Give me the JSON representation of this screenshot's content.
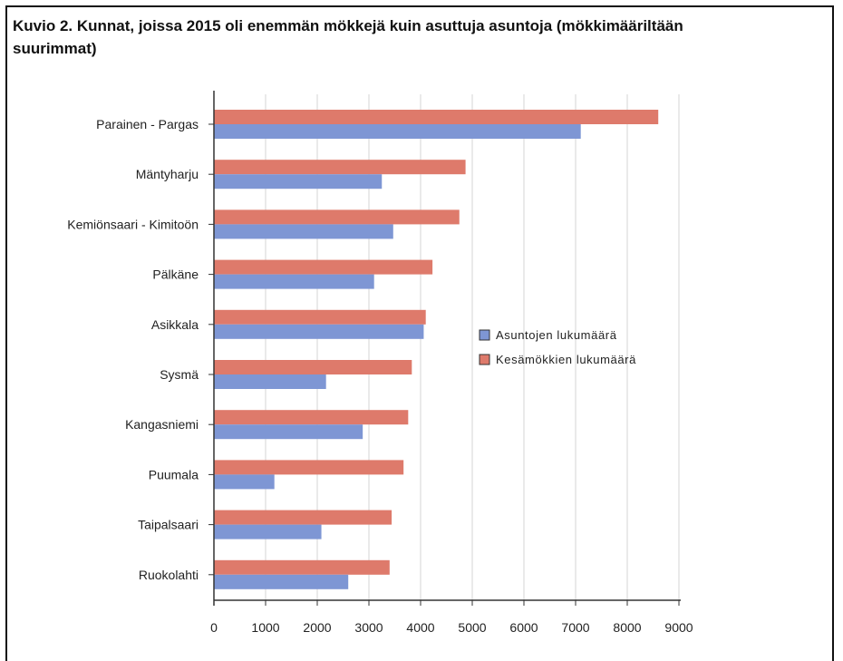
{
  "title": "Kuvio 2. Kunnat, joissa 2015 oli enemmän mökkejä kuin asuttuja asuntoja (mökkimääriltään\nsuurimmat)",
  "chart_data": {
    "type": "bar",
    "orientation": "horizontal",
    "categories": [
      "Parainen - Pargas",
      "Mäntyharju",
      "Kemiönsaari - Kimitoön",
      "Pälkäne",
      "Asikkala",
      "Sysmä",
      "Kangasniemi",
      "Puumala",
      "Taipalsaari",
      "Ruokolahti"
    ],
    "series": [
      {
        "name": "Kesämökkien lukumäärä",
        "color": "#de7a6b",
        "values": [
          8600,
          4870,
          4750,
          4230,
          4100,
          3830,
          3760,
          3670,
          3440,
          3400
        ]
      },
      {
        "name": "Asuntojen lukumäärä",
        "color": "#7e96d4",
        "values": [
          7100,
          3250,
          3470,
          3100,
          4060,
          2170,
          2880,
          1170,
          2080,
          2600
        ]
      }
    ],
    "xlim": [
      0,
      9000
    ],
    "xticks": [
      "0",
      "1000",
      "2000",
      "3000",
      "4000",
      "5000",
      "6000",
      "7000",
      "8000",
      "9000"
    ],
    "grid": true,
    "legend_position": "right",
    "legend": [
      "Asuntojen lukumäärä",
      "Kesämökkien lukumäärä"
    ]
  }
}
